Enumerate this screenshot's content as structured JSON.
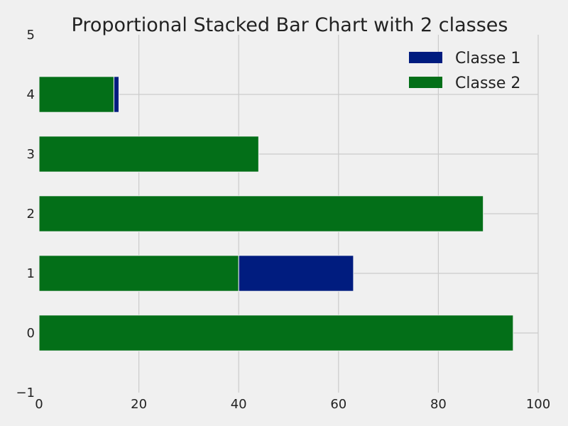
{
  "chart_data": {
    "type": "bar",
    "orientation": "horizontal",
    "stacked": true,
    "title": "Proportional Stacked Bar Chart with 2 classes",
    "xlabel": "",
    "ylabel": "",
    "categories": [
      0,
      1,
      2,
      3,
      4
    ],
    "series": [
      {
        "name": "Classe 2",
        "values": [
          95,
          40,
          89,
          44,
          15
        ],
        "color": "#036f18"
      },
      {
        "name": "Classe 1",
        "values": [
          0,
          23,
          0,
          0,
          1
        ],
        "color": "#001c7f"
      }
    ],
    "xlim": [
      0,
      100
    ],
    "ylim": [
      -1,
      5
    ],
    "x_ticks": [
      "0",
      "20",
      "40",
      "60",
      "80",
      "100"
    ],
    "y_ticks": [
      "−1",
      "0",
      "1",
      "2",
      "3",
      "4",
      "5"
    ],
    "legend": {
      "placement": "top-right",
      "entries": [
        {
          "label": "Classe 1",
          "color": "#001c7f"
        },
        {
          "label": "Classe 2",
          "color": "#036f18"
        }
      ]
    },
    "grid": true,
    "background": "#f0f0f0"
  }
}
